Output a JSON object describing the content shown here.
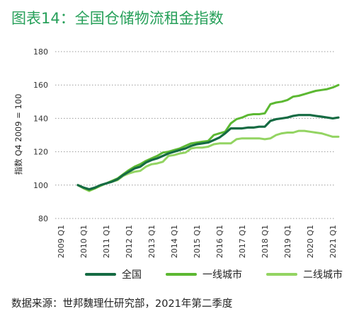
{
  "title": "图表14：全国仓储物流租金指数",
  "source": "数据来源：世邦魏理仕研究部，2021年第二季度",
  "chart_data": {
    "type": "line",
    "title": "图表14：全国仓储物流租金指数",
    "ylabel": "指数 Q4 2009 = 100",
    "xlabel": "",
    "ylim": [
      80,
      180
    ],
    "yticks": [
      80,
      100,
      120,
      140,
      160,
      180
    ],
    "grid": true,
    "legend_position": "bottom",
    "x_tick_labels": [
      "2009 Q1",
      "2010 Q1",
      "2011 Q1",
      "2012 Q1",
      "2013 Q1",
      "2014 Q1",
      "2015 Q1",
      "2016 Q1",
      "2017 Q1",
      "2018 Q1",
      "2019 Q1",
      "2020 Q1",
      "2021 Q1"
    ],
    "x": [
      "2009 Q4",
      "2010 Q1",
      "2010 Q2",
      "2010 Q3",
      "2010 Q4",
      "2011 Q1",
      "2011 Q2",
      "2011 Q3",
      "2011 Q4",
      "2012 Q1",
      "2012 Q2",
      "2012 Q3",
      "2012 Q4",
      "2013 Q1",
      "2013 Q2",
      "2013 Q3",
      "2013 Q4",
      "2014 Q1",
      "2014 Q2",
      "2014 Q3",
      "2014 Q4",
      "2015 Q1",
      "2015 Q2",
      "2015 Q3",
      "2015 Q4",
      "2016 Q1",
      "2016 Q2",
      "2016 Q3",
      "2016 Q4",
      "2017 Q1",
      "2017 Q2",
      "2017 Q3",
      "2017 Q4",
      "2018 Q1",
      "2018 Q2",
      "2018 Q3",
      "2018 Q4",
      "2019 Q1",
      "2019 Q2",
      "2019 Q3",
      "2019 Q4",
      "2020 Q1",
      "2020 Q2",
      "2020 Q3",
      "2020 Q4",
      "2021 Q1",
      "2021 Q2"
    ],
    "series": [
      {
        "name": "全国",
        "color": "#156b43",
        "width": 3.2,
        "values": [
          100,
          98.5,
          97.5,
          98.5,
          100,
          101,
          102,
          103.5,
          106,
          108,
          110,
          111,
          113.5,
          115,
          116,
          117.5,
          119,
          120,
          121,
          122,
          123.5,
          124.5,
          125,
          125.5,
          127,
          128.5,
          131,
          134,
          134,
          134,
          134.5,
          134.5,
          135,
          135,
          138.5,
          139.5,
          140,
          140.5,
          141.5,
          142,
          142,
          142,
          141.5,
          141,
          140.5,
          140,
          140.5
        ]
      },
      {
        "name": "一线城市",
        "color": "#5cb832",
        "width": 3.0,
        "values": [
          100,
          98.5,
          97,
          98,
          100,
          101,
          102.5,
          104,
          106.5,
          109,
          111,
          112.5,
          114.5,
          116,
          117.5,
          119.5,
          120,
          121,
          122,
          123.5,
          125,
          125.5,
          126,
          126.5,
          130,
          131,
          132,
          137,
          139.5,
          140.5,
          142,
          142.5,
          142.5,
          143,
          148.5,
          149.5,
          150,
          151,
          153,
          153.5,
          154.5,
          155.5,
          156.5,
          157,
          157.5,
          158.5,
          160
        ]
      },
      {
        "name": "二线城市",
        "color": "#93d462",
        "width": 3.0,
        "values": [
          100,
          98,
          96.5,
          98,
          99.5,
          101,
          102,
          103,
          105.5,
          107,
          108,
          108.5,
          111,
          112.5,
          113,
          114,
          117.5,
          118,
          119,
          119.5,
          122,
          122.5,
          122.5,
          123,
          124.5,
          125,
          125,
          125,
          127.5,
          128,
          128,
          128,
          128,
          127.5,
          128,
          130,
          131,
          131.5,
          131.5,
          132.5,
          132.5,
          132,
          131.5,
          131,
          130,
          129,
          129
        ]
      }
    ]
  }
}
